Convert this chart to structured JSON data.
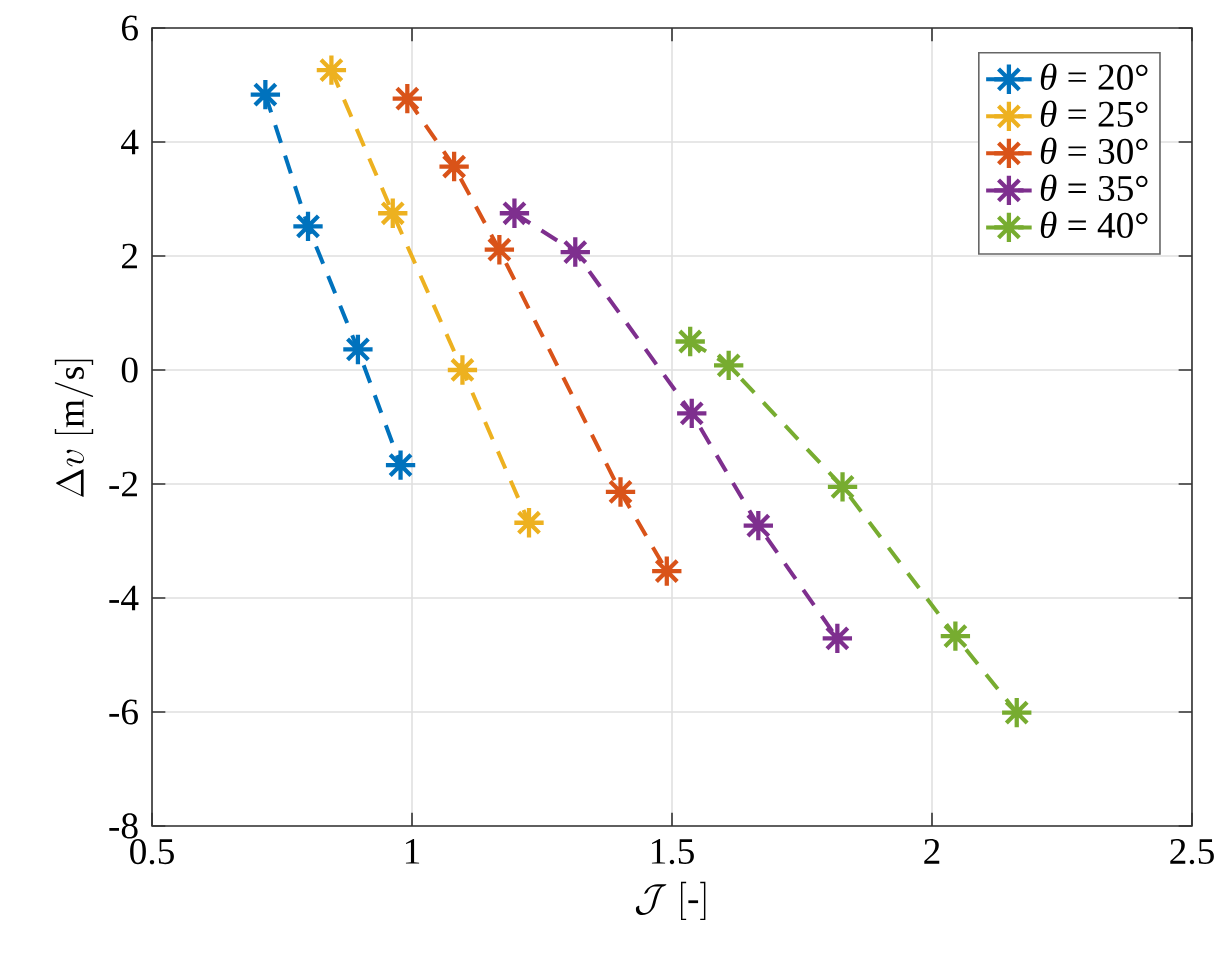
{
  "chart_data": {
    "type": "line",
    "xlabel": "\\mathcal{J}~[\\mbox{-}]",
    "ylabel": "\\Delta v~[\\mathrm{m/s}]",
    "xlim": [
      0.5,
      2.5
    ],
    "ylim": [
      -8,
      6
    ],
    "xticks": [
      0.5,
      1,
      1.5,
      2,
      2.5
    ],
    "yticks": [
      -8,
      -6,
      -4,
      -2,
      0,
      2,
      4,
      6
    ],
    "grid": true,
    "legend": "top right",
    "marker": "cross",
    "line_style": "dashed",
    "series": [
      {
        "name": "*θ* = 20°",
        "color": "#0072bd",
        "x": [
          0.718,
          0.8,
          0.896,
          0.978
        ],
        "values": [
          4.83,
          2.52,
          0.36,
          -1.67
        ]
      },
      {
        "name": "*θ* = 25°",
        "color": "#edb120",
        "x": [
          0.845,
          0.963,
          1.097,
          1.225
        ],
        "values": [
          5.26,
          2.75,
          0.0,
          -2.68
        ]
      },
      {
        "name": "*θ* = 30°",
        "color": "#d95319",
        "x": [
          0.991,
          1.081,
          1.168,
          1.401,
          1.49
        ],
        "values": [
          4.76,
          3.57,
          2.11,
          -2.14,
          -3.53
        ]
      },
      {
        "name": "*θ* = 35°",
        "color": "#7e2f8e",
        "x": [
          1.197,
          1.314,
          1.538,
          1.666,
          1.818
        ],
        "values": [
          2.75,
          2.07,
          -0.76,
          -2.73,
          -4.71
        ]
      },
      {
        "name": "*θ* = 40°",
        "color": "#77ac30",
        "x": [
          1.535,
          1.609,
          1.828,
          2.045,
          2.163
        ],
        "values": [
          0.5,
          0.08,
          -2.05,
          -4.67,
          -6.01
        ]
      }
    ]
  }
}
